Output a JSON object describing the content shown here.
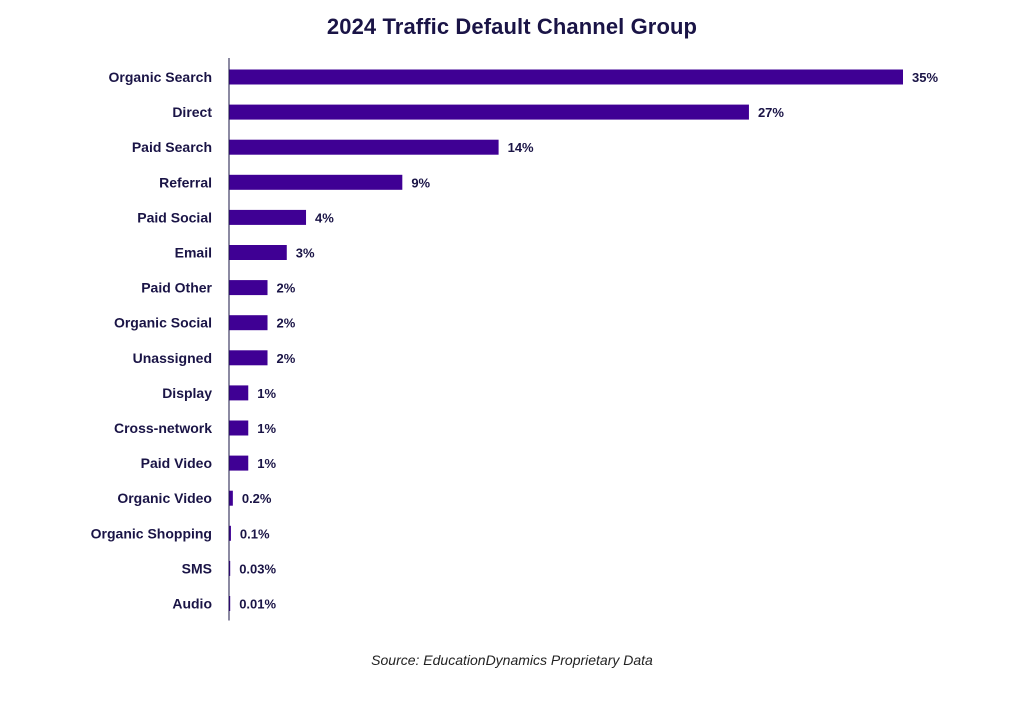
{
  "chart_data": {
    "type": "bar",
    "orientation": "horizontal",
    "title": "2024 Traffic Default Channel Group",
    "categories": [
      "Organic Search",
      "Direct",
      "Paid Search",
      "Referral",
      "Paid Social",
      "Email",
      "Paid Other",
      "Organic Social",
      "Unassigned",
      "Display",
      "Cross-network",
      "Paid Video",
      "Organic Video",
      "Organic Shopping",
      "SMS",
      "Audio"
    ],
    "values": [
      35,
      27,
      14,
      9,
      4,
      3,
      2,
      2,
      2,
      1,
      1,
      1,
      0.2,
      0.1,
      0.03,
      0.01
    ],
    "labels": [
      "35%",
      "27%",
      "14%",
      "9%",
      "4%",
      "3%",
      "2%",
      "2%",
      "2%",
      "1%",
      "1%",
      "1%",
      "0.2%",
      "0.1%",
      "0.03%",
      "0.01%"
    ],
    "xlabel": "",
    "ylabel": "",
    "grid": false,
    "legend": "none",
    "bar_color": "#3f0094"
  },
  "source": "Source: EducationDynamics Proprietary Data"
}
